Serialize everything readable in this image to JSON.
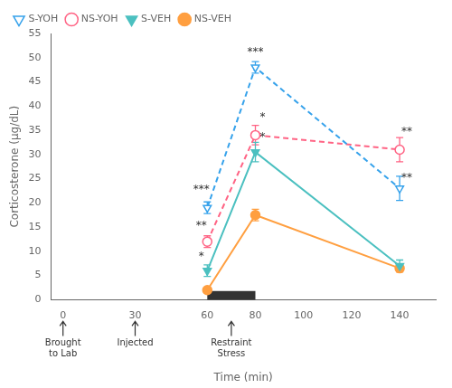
{
  "chart_data": {
    "type": "line",
    "x": [
      60,
      80,
      140
    ],
    "series": [
      {
        "name": "S-YOH",
        "values": [
          19.0,
          48.0,
          23.0
        ],
        "errors": [
          1.2,
          1.2,
          2.5
        ],
        "marker": "triangle_down_open",
        "line_style": "dashed"
      },
      {
        "name": "NS-YOH",
        "values": [
          12.0,
          34.0,
          31.0
        ],
        "errors": [
          1.2,
          2.0,
          2.5
        ],
        "marker": "circle_open",
        "line_style": "dashed"
      },
      {
        "name": "S-VEH",
        "values": [
          6.0,
          30.5,
          7.0
        ],
        "errors": [
          1.2,
          2.0,
          1.2
        ],
        "marker": "triangle_down",
        "line_style": "solid"
      },
      {
        "name": "NS-VEH",
        "values": [
          2.0,
          17.5,
          6.5
        ],
        "errors": [
          0.4,
          1.2,
          0.8
        ],
        "marker": "circle",
        "line_style": "solid"
      }
    ],
    "xlabel": "Time (min)",
    "ylabel": "Corticosterone (μg/dL)",
    "xlim": [
      -5,
      155
    ],
    "ylim": [
      0,
      55
    ],
    "xticks": [
      0,
      30,
      60,
      80,
      100,
      120,
      140
    ],
    "yticks": [
      0,
      5,
      10,
      15,
      20,
      25,
      30,
      35,
      40,
      45,
      50,
      55
    ],
    "grid": false,
    "legend": "upper left",
    "annotations": [
      {
        "text": "***",
        "x": 57.5,
        "y": 21.5
      },
      {
        "text": "**",
        "x": 57.5,
        "y": 14.2
      },
      {
        "text": "*",
        "x": 57.5,
        "y": 7.8
      },
      {
        "text": "***",
        "x": 80,
        "y": 50.0
      },
      {
        "text": "*",
        "x": 83,
        "y": 36.5
      },
      {
        "text": "*",
        "x": 83,
        "y": 32.5
      },
      {
        "text": "**",
        "x": 143,
        "y": 33.5
      },
      {
        "text": "**",
        "x": 143,
        "y": 24.0
      }
    ],
    "arrow_labels": [
      {
        "x": 0,
        "text": "Brought\nto Lab"
      },
      {
        "x": 30,
        "text": "Injected"
      },
      {
        "x": 70,
        "text": "Restraint\nStress"
      }
    ],
    "restraint_bar": {
      "x": [
        60,
        80
      ],
      "y": [
        0,
        1.8
      ]
    }
  }
}
